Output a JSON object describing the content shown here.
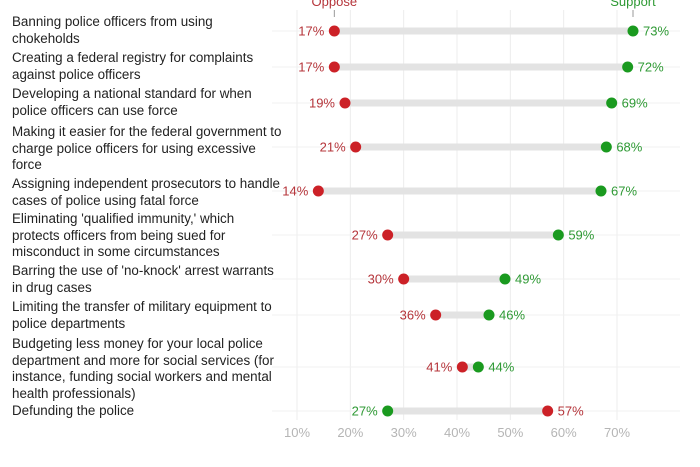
{
  "chart_data": {
    "type": "dumbbell",
    "title": "",
    "xlabel": "",
    "ylabel": "",
    "xlim": [
      5,
      78
    ],
    "x_ticks": [
      "10%",
      "20%",
      "30%",
      "40%",
      "50%",
      "60%",
      "70%"
    ],
    "x_tick_values": [
      10,
      20,
      30,
      40,
      50,
      60,
      70
    ],
    "grid": true,
    "legend": {
      "oppose_label": "Oppose",
      "support_label": "Support",
      "placement": "top"
    },
    "colors": {
      "oppose": "#cc2127",
      "support": "#1a9a1f",
      "oppose_text": "#b5343a",
      "support_text": "#2f9a35",
      "bar": "#e3e3e3",
      "grid": "#ececec"
    },
    "series": [
      {
        "name": "Oppose",
        "values": [
          17,
          17,
          19,
          21,
          14,
          27,
          30,
          36,
          41,
          57
        ]
      },
      {
        "name": "Support",
        "values": [
          73,
          72,
          69,
          68,
          67,
          59,
          49,
          46,
          44,
          27
        ]
      }
    ],
    "categories": [
      "Banning police officers from using chokeholds",
      "Creating a federal registry for complaints against police officers",
      "Developing a national standard for when police officers can use force",
      "Making it easier for the federal government to charge police officers for using excessive force",
      "Assigning independent prosecutors to handle cases of police using fatal force",
      "Eliminating 'qualified immunity,' which protects officers from being sued for misconduct in some circumstances",
      "Barring the use of 'no-knock' arrest warrants in drug cases",
      "Limiting the transfer of military equipment to police departments",
      "Budgeting less money for your local police department and more for social services (for instance, funding social workers and mental health professionals)",
      "Defunding the police"
    ],
    "rows": [
      {
        "label": "Banning police officers from using chokeholds",
        "oppose": 17,
        "support": 73,
        "oppose_label": "17%",
        "support_label": "73%"
      },
      {
        "label": "Creating a federal registry for complaints against police officers",
        "oppose": 17,
        "support": 72,
        "oppose_label": "17%",
        "support_label": "72%"
      },
      {
        "label": "Developing a national standard for when police officers can use force",
        "oppose": 19,
        "support": 69,
        "oppose_label": "19%",
        "support_label": "69%"
      },
      {
        "label": "Making it easier for the federal government to charge police officers for using excessive force",
        "oppose": 21,
        "support": 68,
        "oppose_label": "21%",
        "support_label": "68%"
      },
      {
        "label": "Assigning independent prosecutors to handle cases of police using fatal force",
        "oppose": 14,
        "support": 67,
        "oppose_label": "14%",
        "support_label": "67%"
      },
      {
        "label": "Eliminating 'qualified immunity,' which protects officers from being sued for misconduct in some circumstances",
        "oppose": 27,
        "support": 59,
        "oppose_label": "27%",
        "support_label": "59%"
      },
      {
        "label": "Barring the use of 'no-knock' arrest warrants in drug cases",
        "oppose": 30,
        "support": 49,
        "oppose_label": "30%",
        "support_label": "49%"
      },
      {
        "label": "Limiting the transfer of military equipment to police departments",
        "oppose": 36,
        "support": 46,
        "oppose_label": "36%",
        "support_label": "46%"
      },
      {
        "label": "Budgeting less money for your local police department and more for social services (for instance, funding social workers and mental health professionals)",
        "oppose": 41,
        "support": 44,
        "oppose_label": "41%",
        "support_label": "44%"
      },
      {
        "label": "Defunding the police",
        "oppose": 57,
        "support": 27,
        "oppose_label": "57%",
        "support_label": "27%"
      }
    ]
  }
}
